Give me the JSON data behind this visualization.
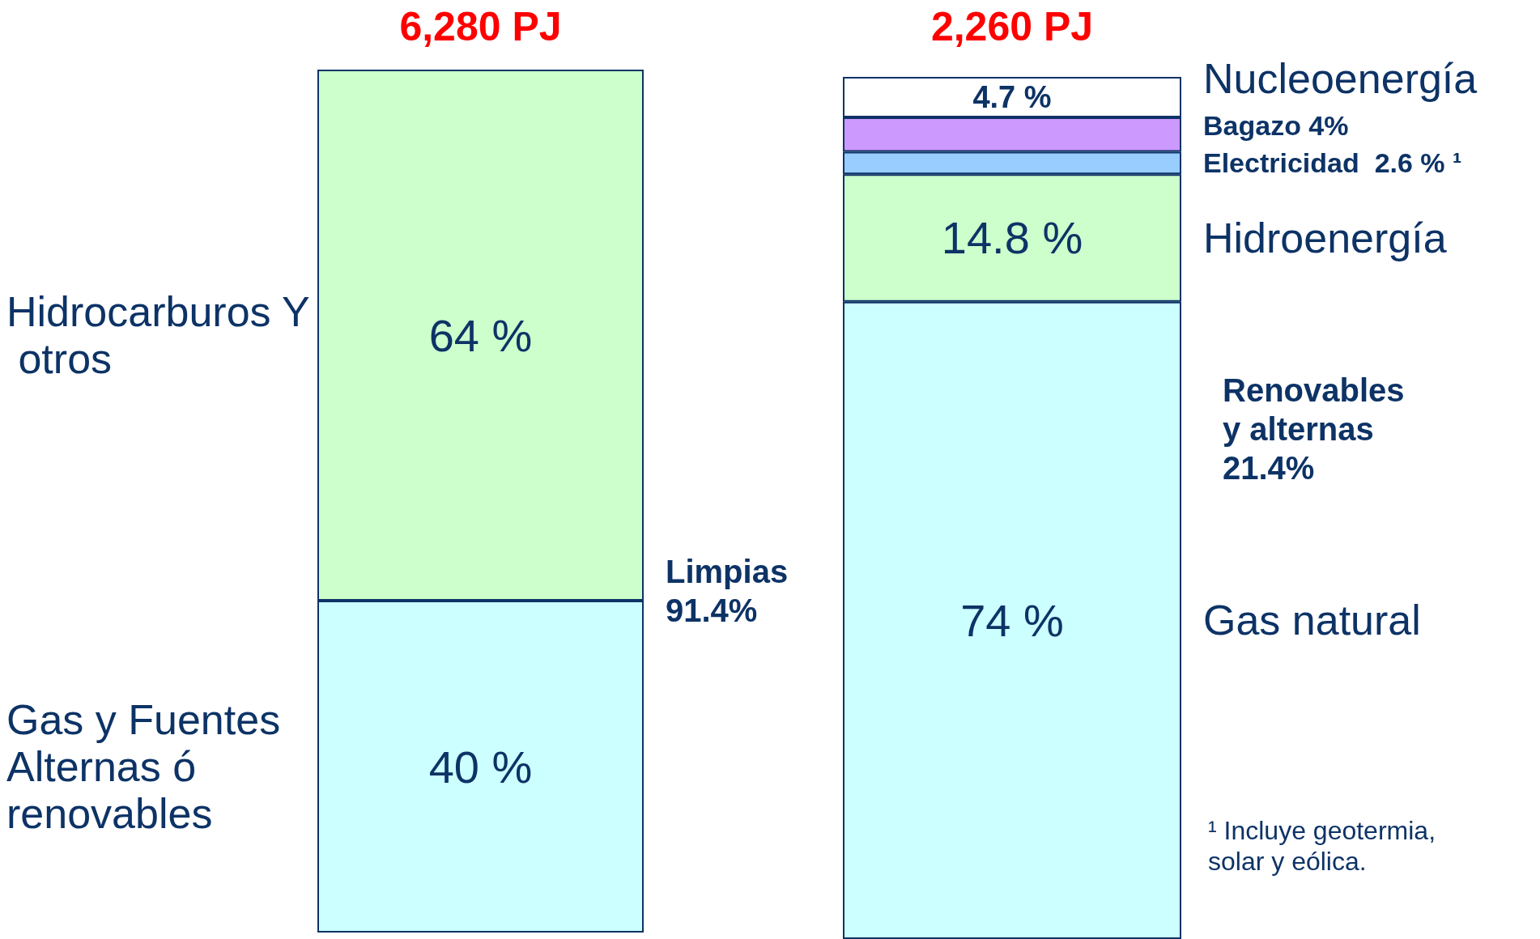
{
  "chart_data": [
    {
      "type": "bar",
      "stacked": true,
      "title": "6,280 PJ",
      "categories": [
        null
      ],
      "series": [
        {
          "name": "Gas y Fuentes Alternas ó renovables",
          "color": "#ccffff",
          "values": [
            40
          ],
          "value_labels": [
            "40 %"
          ]
        },
        {
          "name": "Hidrocarburos Y otros",
          "color": "#ccffcc",
          "values": [
            64
          ],
          "value_labels": [
            "64 %"
          ]
        }
      ]
    },
    {
      "type": "bar",
      "stacked": true,
      "title": "2,260 PJ",
      "categories": [
        null
      ],
      "series": [
        {
          "name": "Gas natural",
          "color": "#ccffff",
          "values": [
            74
          ],
          "value_labels": [
            "74 %"
          ]
        },
        {
          "name": "Hidroenergía",
          "color": "#ccffcc",
          "values": [
            14.8
          ],
          "value_labels": [
            "14.8 %"
          ]
        },
        {
          "name": "Electricidad  2.6 % ¹",
          "color": "#99ccff",
          "values": [
            2.6
          ],
          "value_labels": [
            null
          ]
        },
        {
          "name": "Bagazo 4%",
          "color": "#cc99ff",
          "values": [
            4
          ],
          "value_labels": [
            null
          ]
        },
        {
          "name": "Nucleoenergía",
          "color": "#ffffff",
          "values": [
            4.7
          ],
          "value_labels": [
            "4.7 %"
          ]
        }
      ],
      "annotations": [
        "Limpias 91.4%",
        "Renovables y alternas 21.4%",
        "¹ Incluye geotermia, solar y eólica."
      ]
    }
  ]
}
